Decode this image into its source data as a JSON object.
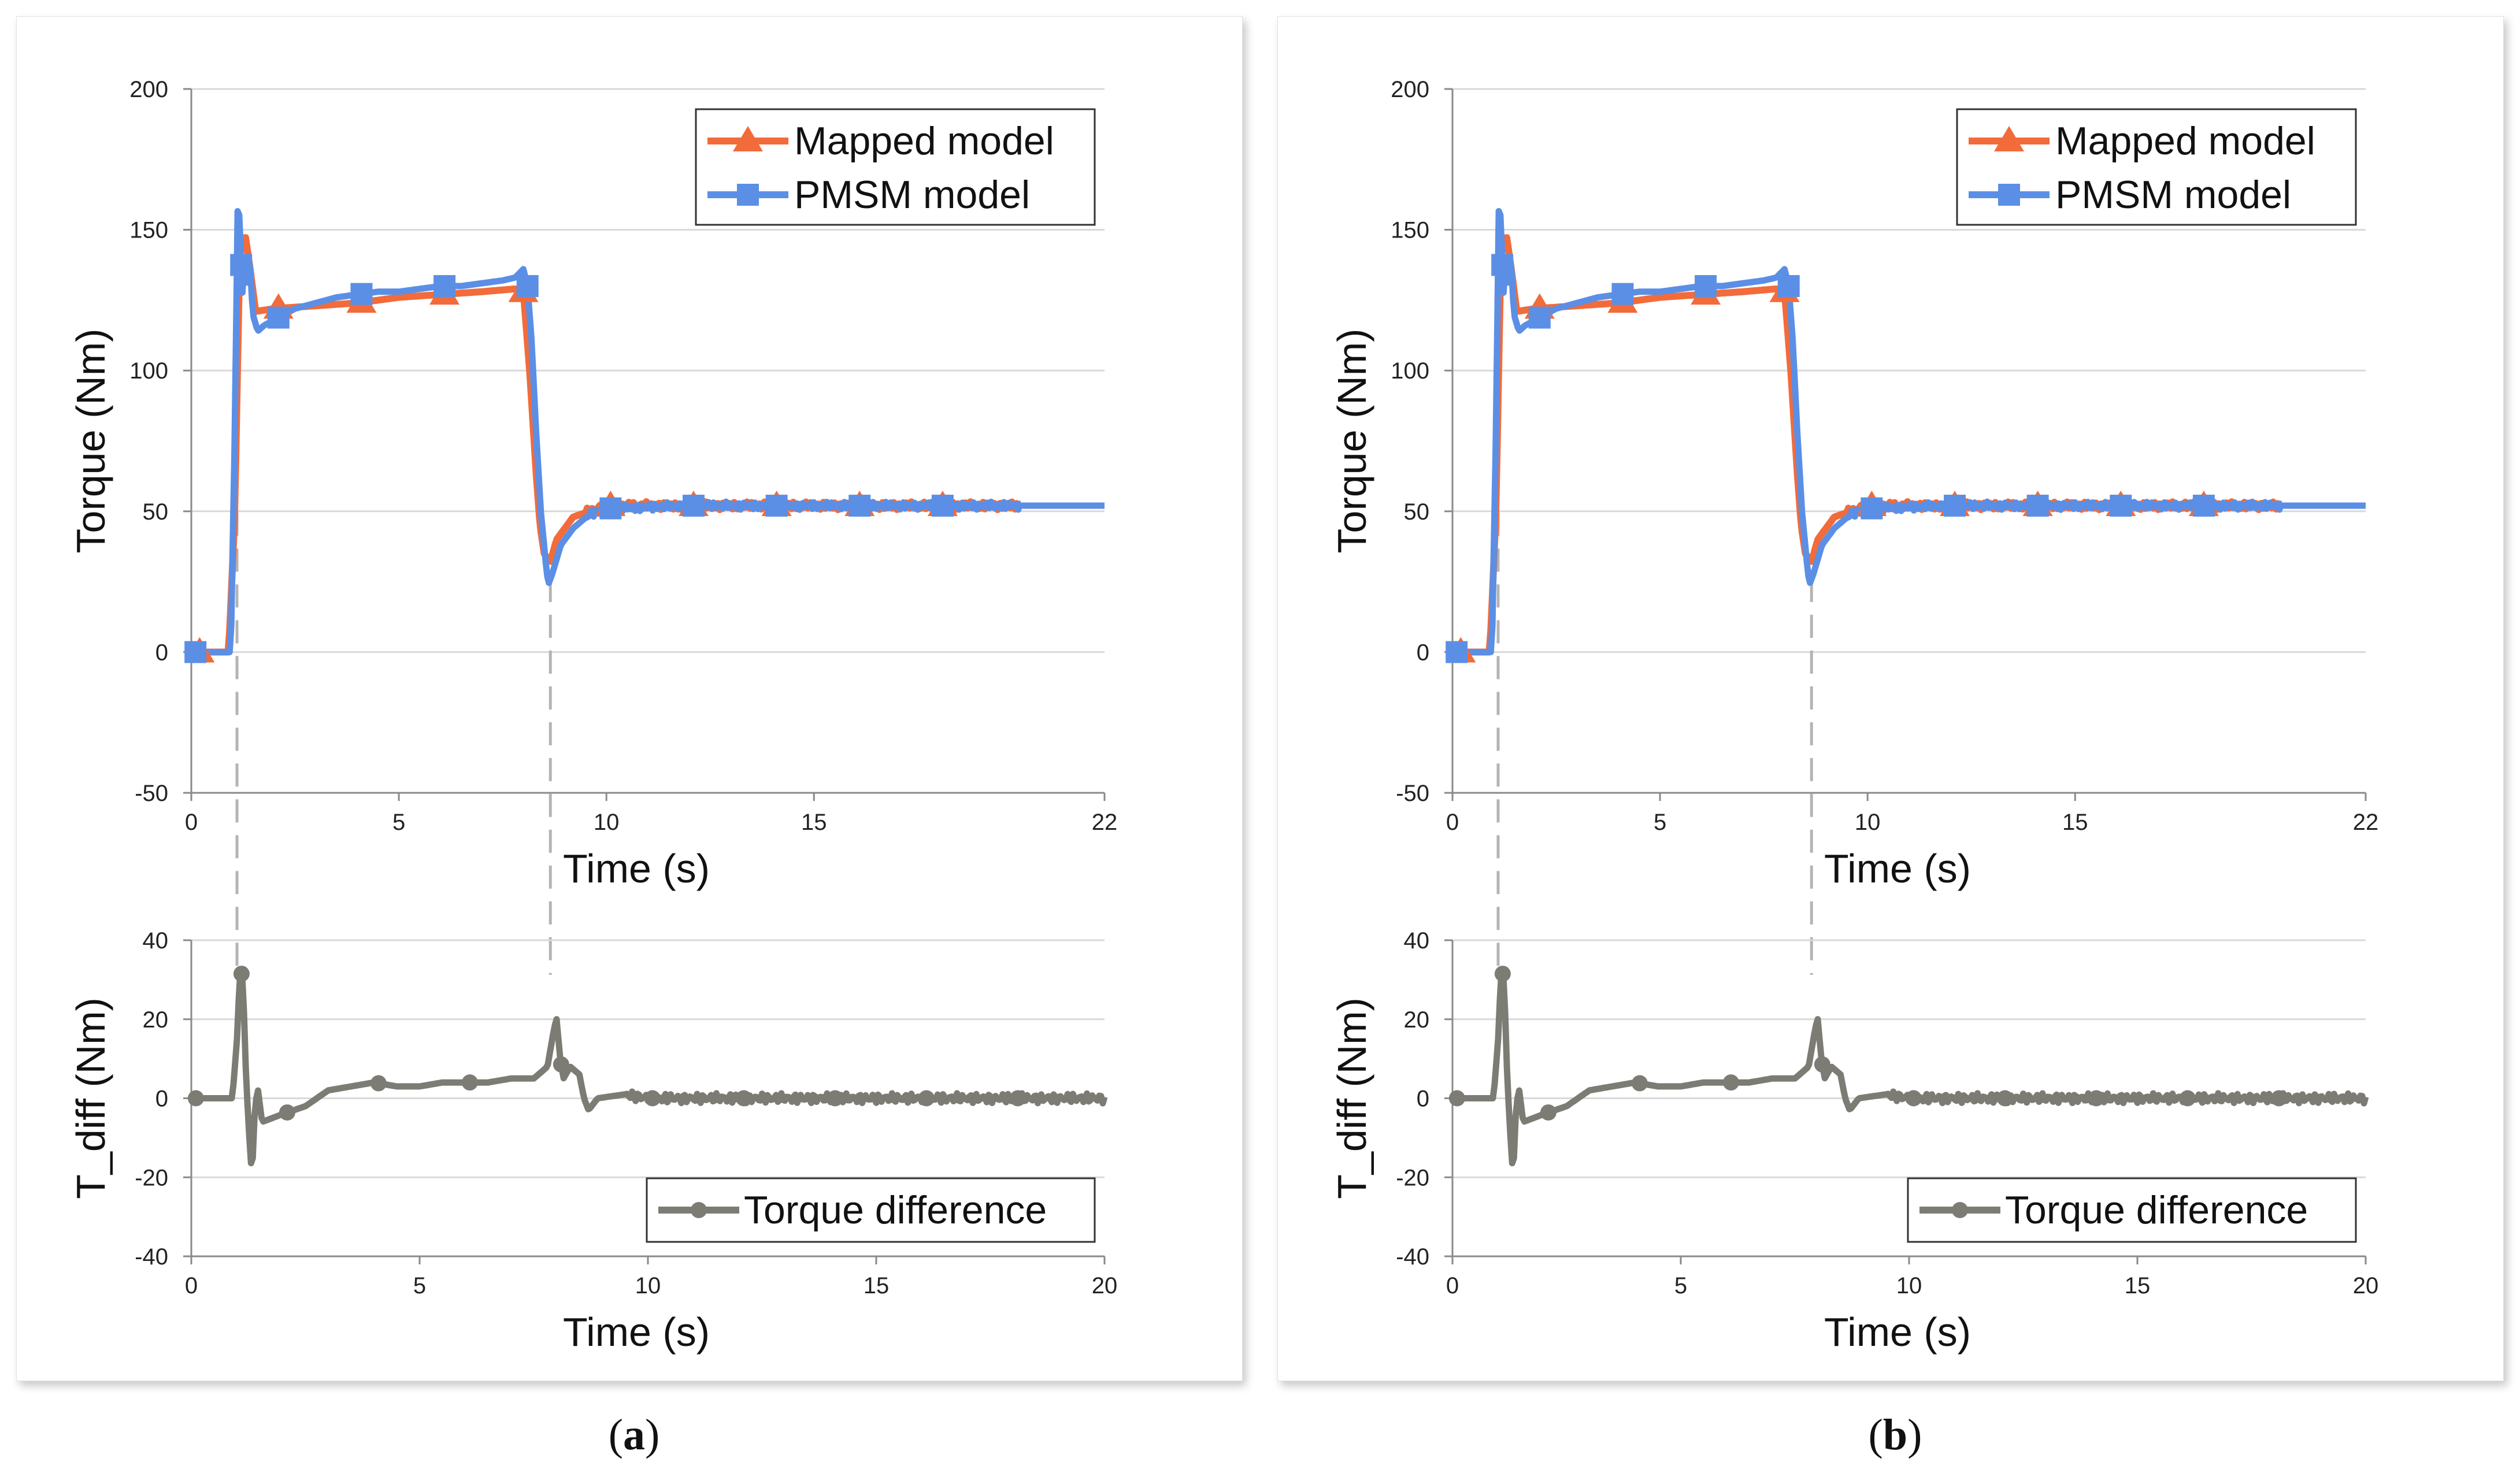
{
  "colors": {
    "mapped": "#f26b3a",
    "pmsm": "#5b8fe6",
    "diff": "#7c7c74",
    "grid": "#d9d9d9",
    "axis": "#8a8a8a",
    "guide": "#b4b4b4"
  },
  "captions": [
    {
      "open": "(",
      "letter": "a",
      "close": ")"
    },
    {
      "open": "(",
      "letter": "b",
      "close": ")"
    }
  ],
  "chart_data": [
    {
      "type": "line",
      "title": "",
      "xlabel": "Time (s)",
      "ylabel": "Torque (Nm)",
      "xlim": [
        0,
        22
      ],
      "ylim": [
        -50,
        200
      ],
      "xticks": [
        0,
        5,
        10,
        15,
        22
      ],
      "yticks": [
        -50,
        0,
        50,
        100,
        150,
        200
      ],
      "legend": {
        "position": "top-right"
      },
      "series": [
        {
          "name": "Mapped model",
          "color": "#f26b3a",
          "marker": "triangle",
          "points": [
            [
              0,
              0
            ],
            [
              0.9,
              0
            ],
            [
              1.05,
              50
            ],
            [
              1.15,
              130
            ],
            [
              1.2,
              145
            ],
            [
              1.3,
              148
            ],
            [
              1.4,
              138
            ],
            [
              1.55,
              121
            ],
            [
              2,
              122
            ],
            [
              3,
              123
            ],
            [
              4,
              124
            ],
            [
              5,
              126
            ],
            [
              6,
              127
            ],
            [
              7,
              128
            ],
            [
              7.8,
              129
            ],
            [
              8.0,
              128
            ],
            [
              8.15,
              100
            ],
            [
              8.3,
              65
            ],
            [
              8.4,
              45
            ],
            [
              8.5,
              35
            ],
            [
              8.65,
              32
            ],
            [
              8.8,
              40
            ],
            [
              9.2,
              48
            ],
            [
              10,
              52
            ],
            [
              12,
              52
            ],
            [
              14,
              52
            ],
            [
              16,
              52
            ],
            [
              18,
              52
            ],
            [
              20,
              52
            ]
          ],
          "markers_x": [
            0.2,
            2.1,
            4.1,
            6.1,
            8.0,
            10.1,
            12.1,
            14.1,
            16.1,
            18.1
          ]
        },
        {
          "name": "PMSM model",
          "color": "#5b8fe6",
          "marker": "square",
          "points": [
            [
              0,
              0
            ],
            [
              0.95,
              0
            ],
            [
              1.05,
              80
            ],
            [
              1.12,
              162
            ],
            [
              1.18,
              150
            ],
            [
              1.22,
              125
            ],
            [
              1.28,
              140
            ],
            [
              1.33,
              128
            ],
            [
              1.4,
              142
            ],
            [
              1.48,
              120
            ],
            [
              1.6,
              114
            ],
            [
              1.75,
              116
            ],
            [
              2.0,
              118
            ],
            [
              2.5,
              122
            ],
            [
              3.0,
              124
            ],
            [
              3.5,
              126
            ],
            [
              4.0,
              127
            ],
            [
              4.5,
              128
            ],
            [
              5.0,
              128
            ],
            [
              5.5,
              129
            ],
            [
              6.0,
              130
            ],
            [
              6.5,
              130
            ],
            [
              7.0,
              131
            ],
            [
              7.5,
              132
            ],
            [
              7.8,
              133
            ],
            [
              8.0,
              136
            ],
            [
              8.1,
              130
            ],
            [
              8.2,
              110
            ],
            [
              8.3,
              80
            ],
            [
              8.42,
              50
            ],
            [
              8.55,
              30
            ],
            [
              8.6,
              24
            ],
            [
              8.7,
              28
            ],
            [
              8.9,
              38
            ],
            [
              9.2,
              44
            ],
            [
              9.6,
              49
            ],
            [
              10,
              51
            ],
            [
              12,
              52
            ],
            [
              14,
              52
            ],
            [
              16,
              52
            ],
            [
              18,
              52
            ],
            [
              20,
              52
            ]
          ],
          "markers_x": [
            0.1,
            1.2,
            2.1,
            4.1,
            6.1,
            8.1,
            10.1,
            12.1,
            14.1,
            16.1,
            18.1
          ]
        }
      ]
    },
    {
      "type": "line",
      "title": "",
      "xlabel": "Time (s)",
      "ylabel": "T_diff (Nm)",
      "xlim": [
        0,
        20
      ],
      "ylim": [
        -40,
        40
      ],
      "xticks": [
        0,
        5,
        10,
        15,
        20
      ],
      "yticks": [
        -40,
        -20,
        0,
        20,
        40
      ],
      "legend": {
        "position": "bottom-right"
      },
      "series": [
        {
          "name": "Torque difference",
          "color": "#7c7c74",
          "marker": "circle",
          "points": [
            [
              0,
              0
            ],
            [
              0.9,
              0
            ],
            [
              1.0,
              15
            ],
            [
              1.07,
              33
            ],
            [
              1.13,
              30
            ],
            [
              1.2,
              5
            ],
            [
              1.28,
              -12
            ],
            [
              1.33,
              -20
            ],
            [
              1.38,
              -5
            ],
            [
              1.45,
              3
            ],
            [
              1.55,
              -6
            ],
            [
              2.0,
              -4
            ],
            [
              2.5,
              -2
            ],
            [
              3.0,
              2
            ],
            [
              3.5,
              3
            ],
            [
              4.0,
              4
            ],
            [
              4.5,
              3
            ],
            [
              5.0,
              3
            ],
            [
              5.5,
              4
            ],
            [
              6.0,
              4
            ],
            [
              6.5,
              4
            ],
            [
              7.0,
              5
            ],
            [
              7.5,
              5
            ],
            [
              7.8,
              8
            ],
            [
              7.95,
              18
            ],
            [
              8.0,
              20
            ],
            [
              8.08,
              10
            ],
            [
              8.15,
              5
            ],
            [
              8.3,
              8
            ],
            [
              8.5,
              6
            ],
            [
              8.6,
              0
            ],
            [
              8.7,
              -3
            ],
            [
              8.9,
              0
            ],
            [
              9.5,
              1
            ],
            [
              10,
              0
            ],
            [
              12,
              0
            ],
            [
              14,
              0
            ],
            [
              16,
              0
            ],
            [
              18,
              0
            ],
            [
              20,
              0
            ]
          ],
          "markers_x": [
            0.1,
            1.1,
            2.1,
            4.1,
            6.1,
            8.1,
            10.1,
            12.1,
            14.1,
            16.1,
            18.1
          ]
        }
      ]
    }
  ]
}
